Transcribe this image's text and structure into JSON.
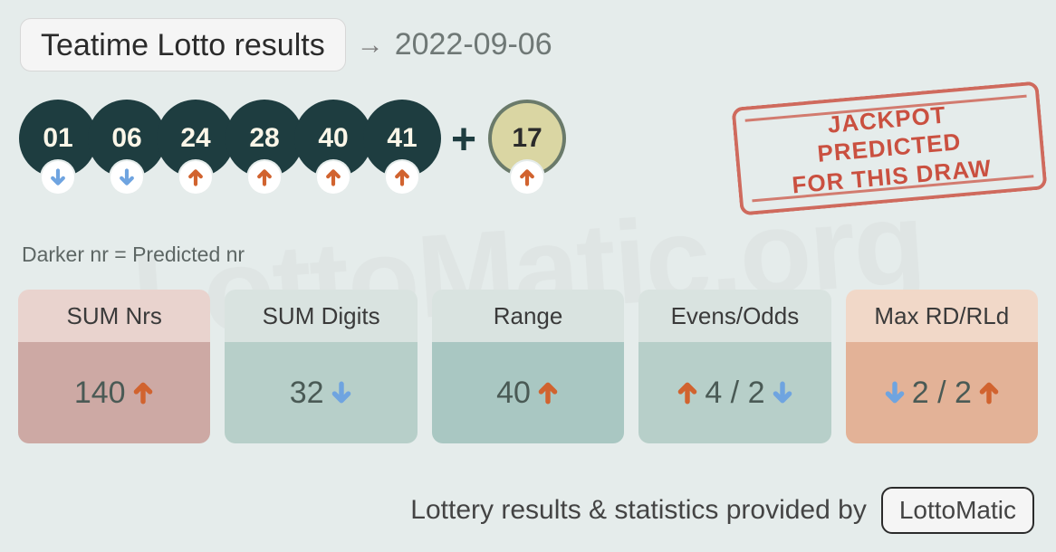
{
  "header": {
    "title": "Teatime Lotto results",
    "date": "2022-09-06"
  },
  "colors": {
    "page_bg": "#e5eceb",
    "ball_main_bg": "#1e3d40",
    "ball_main_fg": "#fbf6e8",
    "ball_bonus_bg": "#dad6a3",
    "ball_bonus_border": "#6a7a6a",
    "ball_bonus_fg": "#2b2b2b",
    "trend_up": "#d1632f",
    "trend_down": "#6fa4e0",
    "stamp": "#c73f2d"
  },
  "balls": {
    "main": [
      {
        "value": "01",
        "trend": "down"
      },
      {
        "value": "06",
        "trend": "down"
      },
      {
        "value": "24",
        "trend": "up"
      },
      {
        "value": "28",
        "trend": "up"
      },
      {
        "value": "40",
        "trend": "up"
      },
      {
        "value": "41",
        "trend": "up"
      }
    ],
    "bonus": {
      "value": "17",
      "trend": "up"
    }
  },
  "legend": "Darker nr = Predicted nr",
  "stamp": {
    "line1": "JACKPOT PREDICTED",
    "line2": "FOR THIS DRAW"
  },
  "cards": [
    {
      "title": "SUM Nrs",
      "head_bg": "#e9d3ce",
      "body_bg": "#cda9a4",
      "text_color": "#4a5a55",
      "layout": "value_arrow",
      "value": "140",
      "arrow": "up"
    },
    {
      "title": "SUM Digits",
      "head_bg": "#d9e3e0",
      "body_bg": "#b7cfc9",
      "text_color": "#4a5a55",
      "layout": "value_arrow",
      "value": "32",
      "arrow": "down"
    },
    {
      "title": "Range",
      "head_bg": "#d9e3e0",
      "body_bg": "#a9c7c2",
      "text_color": "#4a5a55",
      "layout": "value_arrow",
      "value": "40",
      "arrow": "up"
    },
    {
      "title": "Evens/Odds",
      "head_bg": "#d9e3e0",
      "body_bg": "#b7cfc9",
      "text_color": "#4a5a55",
      "layout": "pair",
      "left_arrow": "up",
      "left_value": "4",
      "right_value": "2",
      "right_arrow": "down"
    },
    {
      "title": "Max RD/RLd",
      "head_bg": "#f1d8c8",
      "body_bg": "#e3b297",
      "text_color": "#4a5a55",
      "layout": "pair",
      "left_arrow": "down",
      "left_value": "2",
      "right_value": "2",
      "right_arrow": "up"
    }
  ],
  "footer": {
    "text": "Lottery results & statistics provided by",
    "brand": "LottoMatic"
  },
  "watermark": "LottoMatic.org"
}
